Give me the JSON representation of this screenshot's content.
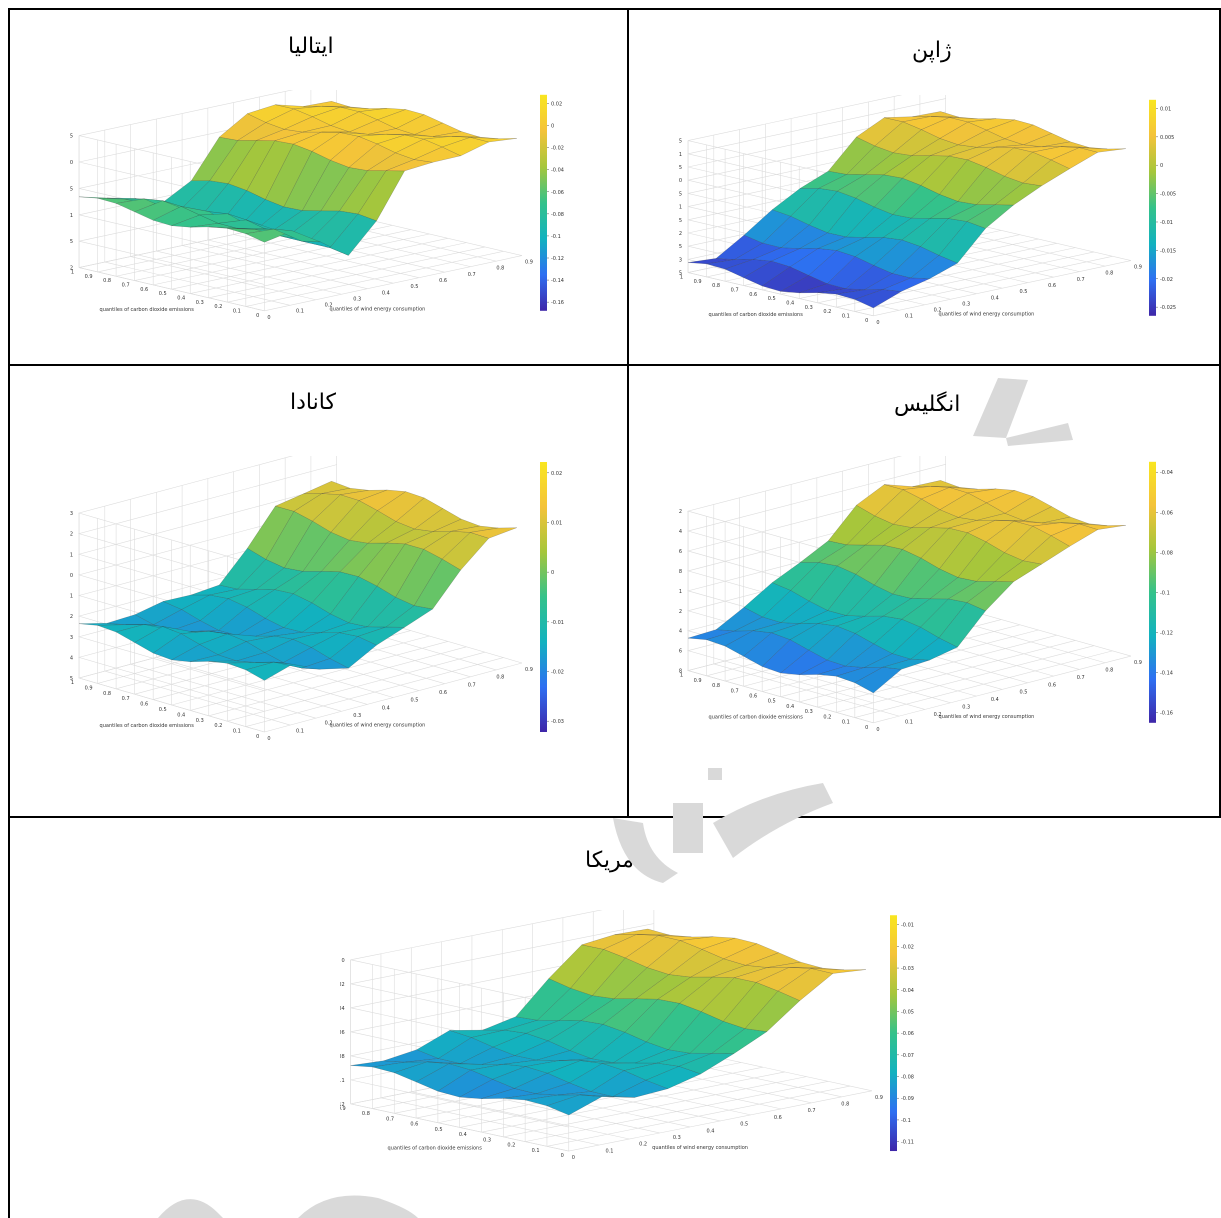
{
  "layout_table": {
    "rows": [
      {
        "cells": [
          {
            "title": "ژاپن",
            "chart": 1
          },
          {
            "title": "ایتالیا",
            "chart": 0
          }
        ]
      },
      {
        "cells": [
          {
            "title": "انگلیس",
            "chart": 3
          },
          {
            "title": "کانادا",
            "chart": 2
          }
        ]
      },
      {
        "cells": [
          {
            "title": "آمریکا",
            "chart": 4
          }
        ]
      }
    ]
  },
  "chart_data": [
    {
      "type": "surface3d",
      "title": "ایتالیا",
      "xlabel": "quantiles of wind energy consumption",
      "ylabel": "quantiles of carbon dioxide emissions",
      "x_ticks": [
        "0",
        "0.1",
        "0.2",
        "0.3",
        "0.4",
        "0.5",
        "0.6",
        "0.7",
        "0.8",
        "0.9"
      ],
      "y_ticks": [
        "0",
        "0.1",
        "0.2",
        "0.3",
        "0.4",
        "0.5",
        "0.6",
        "0.7",
        "0.8",
        "0.9",
        "1"
      ],
      "z_ticks": [
        "0.05",
        "0",
        "-0.05",
        "-0.1",
        "-0.15",
        "-0.2"
      ],
      "zlim": [
        -0.2,
        0.05
      ],
      "colorbar_ticks": [
        "0.02",
        "0",
        "-0.02",
        "-0.04",
        "-0.06",
        "-0.08",
        "-0.1",
        "-0.12",
        "-0.14",
        "-0.16"
      ],
      "profile_x": [
        0,
        0.1,
        0.2,
        0.3,
        0.4,
        0.5,
        0.6,
        0.7,
        0.8,
        0.9
      ],
      "profile_z": [
        -0.07,
        -0.07,
        -0.09,
        -0.12,
        -0.08,
        0.0,
        0.02,
        0.02,
        0.02,
        0.02
      ]
    },
    {
      "type": "surface3d",
      "title": "ژاپن",
      "xlabel": "quantiles of wind energy consumption",
      "ylabel": "quantiles of carbon dioxide emissions",
      "x_ticks": [
        "0",
        "0.1",
        "0.2",
        "0.3",
        "0.4",
        "0.5",
        "0.6",
        "0.7",
        "0.8",
        "0.9"
      ],
      "y_ticks": [
        "0",
        "0.1",
        "0.2",
        "0.3",
        "0.4",
        "0.5",
        "0.6",
        "0.7",
        "0.8",
        "0.9",
        "1"
      ],
      "z_ticks": [
        "0.015",
        "0.01",
        "0.005",
        "0",
        "-0.005",
        "-0.01",
        "-0.015",
        "-0.02",
        "-0.025",
        "-0.03",
        "-0.035"
      ],
      "zlim": [
        -0.035,
        0.015
      ],
      "colorbar_ticks": [
        "0.01",
        "0.005",
        "0",
        "-0.005",
        "-0.01",
        "-0.015",
        "-0.02",
        "-0.025"
      ],
      "profile_x": [
        0,
        0.1,
        0.2,
        0.3,
        0.4,
        0.5,
        0.6,
        0.7,
        0.8,
        0.9
      ],
      "profile_z": [
        -0.032,
        -0.03,
        -0.025,
        -0.02,
        -0.012,
        -0.006,
        0.002,
        0.006,
        0.007,
        0.007
      ]
    },
    {
      "type": "surface3d",
      "title": "کانادا",
      "xlabel": "quantiles of wind energy consumption",
      "ylabel": "quantiles of carbon dioxide emissions",
      "x_ticks": [
        "0",
        "0.1",
        "0.2",
        "0.3",
        "0.4",
        "0.5",
        "0.6",
        "0.7",
        "0.8",
        "0.9"
      ],
      "y_ticks": [
        "0",
        "0.1",
        "0.2",
        "0.3",
        "0.4",
        "0.5",
        "0.6",
        "0.7",
        "0.8",
        "0.9",
        "1"
      ],
      "z_ticks": [
        "0.03",
        "0.02",
        "0.01",
        "0",
        "-0.01",
        "-0.02",
        "-0.03",
        "-0.04",
        "-0.05"
      ],
      "zlim": [
        -0.05,
        0.03
      ],
      "colorbar_ticks": [
        "0.02",
        "0.01",
        "0",
        "-0.01",
        "-0.02",
        "-0.03"
      ],
      "profile_x": [
        0,
        0.1,
        0.2,
        0.3,
        0.4,
        0.5,
        0.6,
        0.7,
        0.8,
        0.9
      ],
      "profile_z": [
        -0.025,
        -0.024,
        -0.026,
        -0.027,
        -0.024,
        -0.02,
        -0.01,
        0.005,
        0.012,
        0.015
      ]
    },
    {
      "type": "surface3d",
      "title": "انگلیس",
      "xlabel": "quantiles of wind energy consumption",
      "ylabel": "quantiles of carbon dioxide emissions",
      "x_ticks": [
        "0",
        "0.1",
        "0.2",
        "0.3",
        "0.4",
        "0.5",
        "0.6",
        "0.7",
        "0.8",
        "0.9"
      ],
      "y_ticks": [
        "0",
        "0.1",
        "0.2",
        "0.3",
        "0.4",
        "0.5",
        "0.6",
        "0.7",
        "0.8",
        "0.9",
        "1"
      ],
      "z_ticks": [
        "-0.02",
        "-0.04",
        "-0.06",
        "-0.08",
        "-0.1",
        "-0.12",
        "-0.14",
        "-0.16",
        "-0.18"
      ],
      "zlim": [
        -0.18,
        -0.02
      ],
      "colorbar_ticks": [
        "-0.04",
        "-0.06",
        "-0.08",
        "-0.1",
        "-0.12",
        "-0.14",
        "-0.16"
      ],
      "profile_x": [
        0,
        0.1,
        0.2,
        0.3,
        0.4,
        0.5,
        0.6,
        0.7,
        0.8,
        0.9
      ],
      "profile_z": [
        -0.15,
        -0.14,
        -0.13,
        -0.12,
        -0.1,
        -0.08,
        -0.06,
        -0.05,
        -0.05,
        -0.05
      ]
    },
    {
      "type": "surface3d",
      "title": "آمریکا",
      "xlabel": "quantiles of wind energy consumption",
      "ylabel": "quantiles of carbon dioxide emissions",
      "x_ticks": [
        "0",
        "0.1",
        "0.2",
        "0.3",
        "0.4",
        "0.5",
        "0.6",
        "0.7",
        "0.8",
        "0.9"
      ],
      "y_ticks": [
        "0",
        "0.1",
        "0.2",
        "0.3",
        "0.4",
        "0.5",
        "0.6",
        "0.7",
        "0.8",
        "0.9"
      ],
      "z_ticks": [
        "0",
        "-0.02",
        "-0.04",
        "-0.06",
        "-0.08",
        "-0.1",
        "-0.12"
      ],
      "zlim": [
        -0.12,
        0
      ],
      "colorbar_ticks": [
        "-0.01",
        "-0.02",
        "-0.03",
        "-0.04",
        "-0.05",
        "-0.06",
        "-0.07",
        "-0.08",
        "-0.09",
        "-0.1",
        "-0.11"
      ],
      "profile_x": [
        0,
        0.1,
        0.2,
        0.3,
        0.4,
        0.5,
        0.6,
        0.7,
        0.8,
        0.9
      ],
      "profile_z": [
        -0.09,
        -0.085,
        -0.085,
        -0.08,
        -0.08,
        -0.07,
        -0.05,
        -0.03,
        -0.02,
        -0.02
      ]
    }
  ],
  "colors": {
    "colormap": [
      "#3e26a8",
      "#2e6ff2",
      "#12b2bf",
      "#34c28a",
      "#a6c63b",
      "#f4c33a",
      "#f9e61f"
    ],
    "grid": "#dcdcdc",
    "border": "#000000",
    "watermark": "#d9d9d9"
  }
}
